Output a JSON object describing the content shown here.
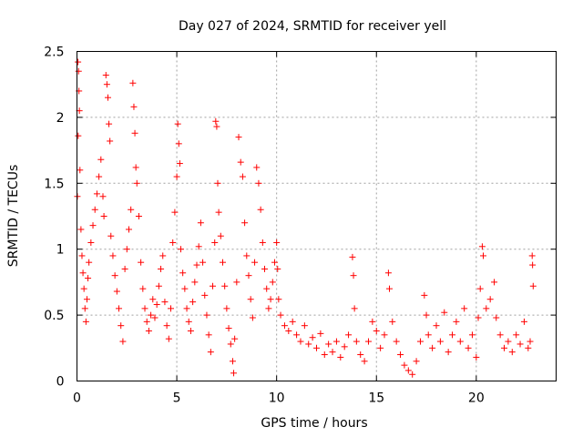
{
  "chart_data": {
    "type": "scatter",
    "title": "Day 027 of 2024, SRMTID for receiver yell",
    "xlabel": "GPS time / hours",
    "ylabel": "SRMTID / TECUs",
    "xlim": [
      0,
      24
    ],
    "ylim": [
      0,
      2.5
    ],
    "grid": true,
    "marker": "+",
    "series_color": "#ff0000",
    "x_ticks": [
      {
        "value": 0,
        "label": "0"
      },
      {
        "value": 5,
        "label": "5"
      },
      {
        "value": 10,
        "label": "10"
      },
      {
        "value": 15,
        "label": "15"
      },
      {
        "value": 20,
        "label": "20"
      }
    ],
    "y_ticks": [
      {
        "value": 0,
        "label": "0"
      },
      {
        "value": 0.5,
        "label": "0.5"
      },
      {
        "value": 1,
        "label": "1"
      },
      {
        "value": 1.5,
        "label": "1.5"
      },
      {
        "value": 2,
        "label": "2"
      },
      {
        "value": 2.5,
        "label": "2.5"
      }
    ],
    "series": [
      {
        "name": "SRMTID",
        "points": [
          [
            0.05,
            2.42
          ],
          [
            0.08,
            2.35
          ],
          [
            0.1,
            2.2
          ],
          [
            0.12,
            2.05
          ],
          [
            0.06,
            1.86
          ],
          [
            0.15,
            1.6
          ],
          [
            0.02,
            1.4
          ],
          [
            0.2,
            1.15
          ],
          [
            0.25,
            0.95
          ],
          [
            0.3,
            0.82
          ],
          [
            0.35,
            0.7
          ],
          [
            0.4,
            0.55
          ],
          [
            0.45,
            0.45
          ],
          [
            0.5,
            0.62
          ],
          [
            0.55,
            0.78
          ],
          [
            0.6,
            0.9
          ],
          [
            0.7,
            1.05
          ],
          [
            0.8,
            1.18
          ],
          [
            0.9,
            1.3
          ],
          [
            1.0,
            1.42
          ],
          [
            1.1,
            1.55
          ],
          [
            1.2,
            1.68
          ],
          [
            1.3,
            1.4
          ],
          [
            1.35,
            1.25
          ],
          [
            1.45,
            2.32
          ],
          [
            1.5,
            2.25
          ],
          [
            1.55,
            2.15
          ],
          [
            1.6,
            1.95
          ],
          [
            1.65,
            1.82
          ],
          [
            1.7,
            1.1
          ],
          [
            1.8,
            0.95
          ],
          [
            1.9,
            0.8
          ],
          [
            2.0,
            0.68
          ],
          [
            2.1,
            0.55
          ],
          [
            2.2,
            0.42
          ],
          [
            2.3,
            0.3
          ],
          [
            2.4,
            0.85
          ],
          [
            2.5,
            1.0
          ],
          [
            2.6,
            1.15
          ],
          [
            2.7,
            1.3
          ],
          [
            2.8,
            2.26
          ],
          [
            2.85,
            2.08
          ],
          [
            2.9,
            1.88
          ],
          [
            2.95,
            1.62
          ],
          [
            3.0,
            1.5
          ],
          [
            3.1,
            1.25
          ],
          [
            3.2,
            0.9
          ],
          [
            3.3,
            0.7
          ],
          [
            3.4,
            0.55
          ],
          [
            3.5,
            0.45
          ],
          [
            3.6,
            0.38
          ],
          [
            3.7,
            0.5
          ],
          [
            3.8,
            0.62
          ],
          [
            3.9,
            0.48
          ],
          [
            4.0,
            0.58
          ],
          [
            4.1,
            0.72
          ],
          [
            4.2,
            0.85
          ],
          [
            4.3,
            0.95
          ],
          [
            4.4,
            0.6
          ],
          [
            4.5,
            0.42
          ],
          [
            4.6,
            0.32
          ],
          [
            4.7,
            0.55
          ],
          [
            4.8,
            1.05
          ],
          [
            4.9,
            1.28
          ],
          [
            5.0,
            1.55
          ],
          [
            5.05,
            1.95
          ],
          [
            5.1,
            1.8
          ],
          [
            5.15,
            1.65
          ],
          [
            5.2,
            1.0
          ],
          [
            5.3,
            0.82
          ],
          [
            5.4,
            0.7
          ],
          [
            5.5,
            0.55
          ],
          [
            5.6,
            0.45
          ],
          [
            5.7,
            0.38
          ],
          [
            5.8,
            0.6
          ],
          [
            5.9,
            0.75
          ],
          [
            6.0,
            0.88
          ],
          [
            6.1,
            1.02
          ],
          [
            6.2,
            1.2
          ],
          [
            6.3,
            0.9
          ],
          [
            6.4,
            0.65
          ],
          [
            6.5,
            0.5
          ],
          [
            6.6,
            0.35
          ],
          [
            6.7,
            0.22
          ],
          [
            6.8,
            0.72
          ],
          [
            6.9,
            1.05
          ],
          [
            6.95,
            1.97
          ],
          [
            7.0,
            1.93
          ],
          [
            7.05,
            1.5
          ],
          [
            7.1,
            1.28
          ],
          [
            7.2,
            1.1
          ],
          [
            7.3,
            0.9
          ],
          [
            7.4,
            0.72
          ],
          [
            7.5,
            0.55
          ],
          [
            7.6,
            0.4
          ],
          [
            7.7,
            0.28
          ],
          [
            7.8,
            0.15
          ],
          [
            7.85,
            0.06
          ],
          [
            7.9,
            0.32
          ],
          [
            8.0,
            0.75
          ],
          [
            8.1,
            1.85
          ],
          [
            8.2,
            1.66
          ],
          [
            8.3,
            1.55
          ],
          [
            8.4,
            1.2
          ],
          [
            8.5,
            0.95
          ],
          [
            8.6,
            0.8
          ],
          [
            8.7,
            0.62
          ],
          [
            8.8,
            0.48
          ],
          [
            8.9,
            0.9
          ],
          [
            9.0,
            1.62
          ],
          [
            9.1,
            1.5
          ],
          [
            9.2,
            1.3
          ],
          [
            9.3,
            1.05
          ],
          [
            9.4,
            0.85
          ],
          [
            9.5,
            0.7
          ],
          [
            9.6,
            0.55
          ],
          [
            9.7,
            0.62
          ],
          [
            9.8,
            0.75
          ],
          [
            9.9,
            0.9
          ],
          [
            10.0,
            1.05
          ],
          [
            10.05,
            0.85
          ],
          [
            10.1,
            0.62
          ],
          [
            10.2,
            0.5
          ],
          [
            10.4,
            0.42
          ],
          [
            10.6,
            0.38
          ],
          [
            10.8,
            0.45
          ],
          [
            11.0,
            0.35
          ],
          [
            11.2,
            0.3
          ],
          [
            11.4,
            0.42
          ],
          [
            11.6,
            0.28
          ],
          [
            11.8,
            0.33
          ],
          [
            12.0,
            0.25
          ],
          [
            12.2,
            0.36
          ],
          [
            12.4,
            0.2
          ],
          [
            12.6,
            0.28
          ],
          [
            12.8,
            0.22
          ],
          [
            13.0,
            0.3
          ],
          [
            13.2,
            0.18
          ],
          [
            13.4,
            0.26
          ],
          [
            13.6,
            0.35
          ],
          [
            13.8,
            0.94
          ],
          [
            13.85,
            0.8
          ],
          [
            13.9,
            0.55
          ],
          [
            14.0,
            0.3
          ],
          [
            14.2,
            0.2
          ],
          [
            14.4,
            0.15
          ],
          [
            14.6,
            0.3
          ],
          [
            14.8,
            0.45
          ],
          [
            15.0,
            0.38
          ],
          [
            15.2,
            0.25
          ],
          [
            15.4,
            0.35
          ],
          [
            15.6,
            0.82
          ],
          [
            15.65,
            0.7
          ],
          [
            15.8,
            0.45
          ],
          [
            16.0,
            0.3
          ],
          [
            16.2,
            0.2
          ],
          [
            16.4,
            0.12
          ],
          [
            16.6,
            0.08
          ],
          [
            16.8,
            0.05
          ],
          [
            17.0,
            0.15
          ],
          [
            17.2,
            0.3
          ],
          [
            17.4,
            0.65
          ],
          [
            17.5,
            0.5
          ],
          [
            17.6,
            0.35
          ],
          [
            17.8,
            0.25
          ],
          [
            18.0,
            0.42
          ],
          [
            18.2,
            0.3
          ],
          [
            18.4,
            0.52
          ],
          [
            18.6,
            0.22
          ],
          [
            18.8,
            0.35
          ],
          [
            19.0,
            0.45
          ],
          [
            19.2,
            0.3
          ],
          [
            19.4,
            0.55
          ],
          [
            19.6,
            0.25
          ],
          [
            19.8,
            0.35
          ],
          [
            20.0,
            0.18
          ],
          [
            20.1,
            0.48
          ],
          [
            20.2,
            0.7
          ],
          [
            20.3,
            1.02
          ],
          [
            20.35,
            0.95
          ],
          [
            20.5,
            0.55
          ],
          [
            20.7,
            0.62
          ],
          [
            20.9,
            0.75
          ],
          [
            21.0,
            0.48
          ],
          [
            21.2,
            0.35
          ],
          [
            21.4,
            0.25
          ],
          [
            21.6,
            0.3
          ],
          [
            21.8,
            0.22
          ],
          [
            22.0,
            0.35
          ],
          [
            22.2,
            0.28
          ],
          [
            22.4,
            0.45
          ],
          [
            22.6,
            0.25
          ],
          [
            22.7,
            0.3
          ],
          [
            22.8,
            0.95
          ],
          [
            22.82,
            0.88
          ],
          [
            22.85,
            0.72
          ]
        ]
      }
    ]
  }
}
